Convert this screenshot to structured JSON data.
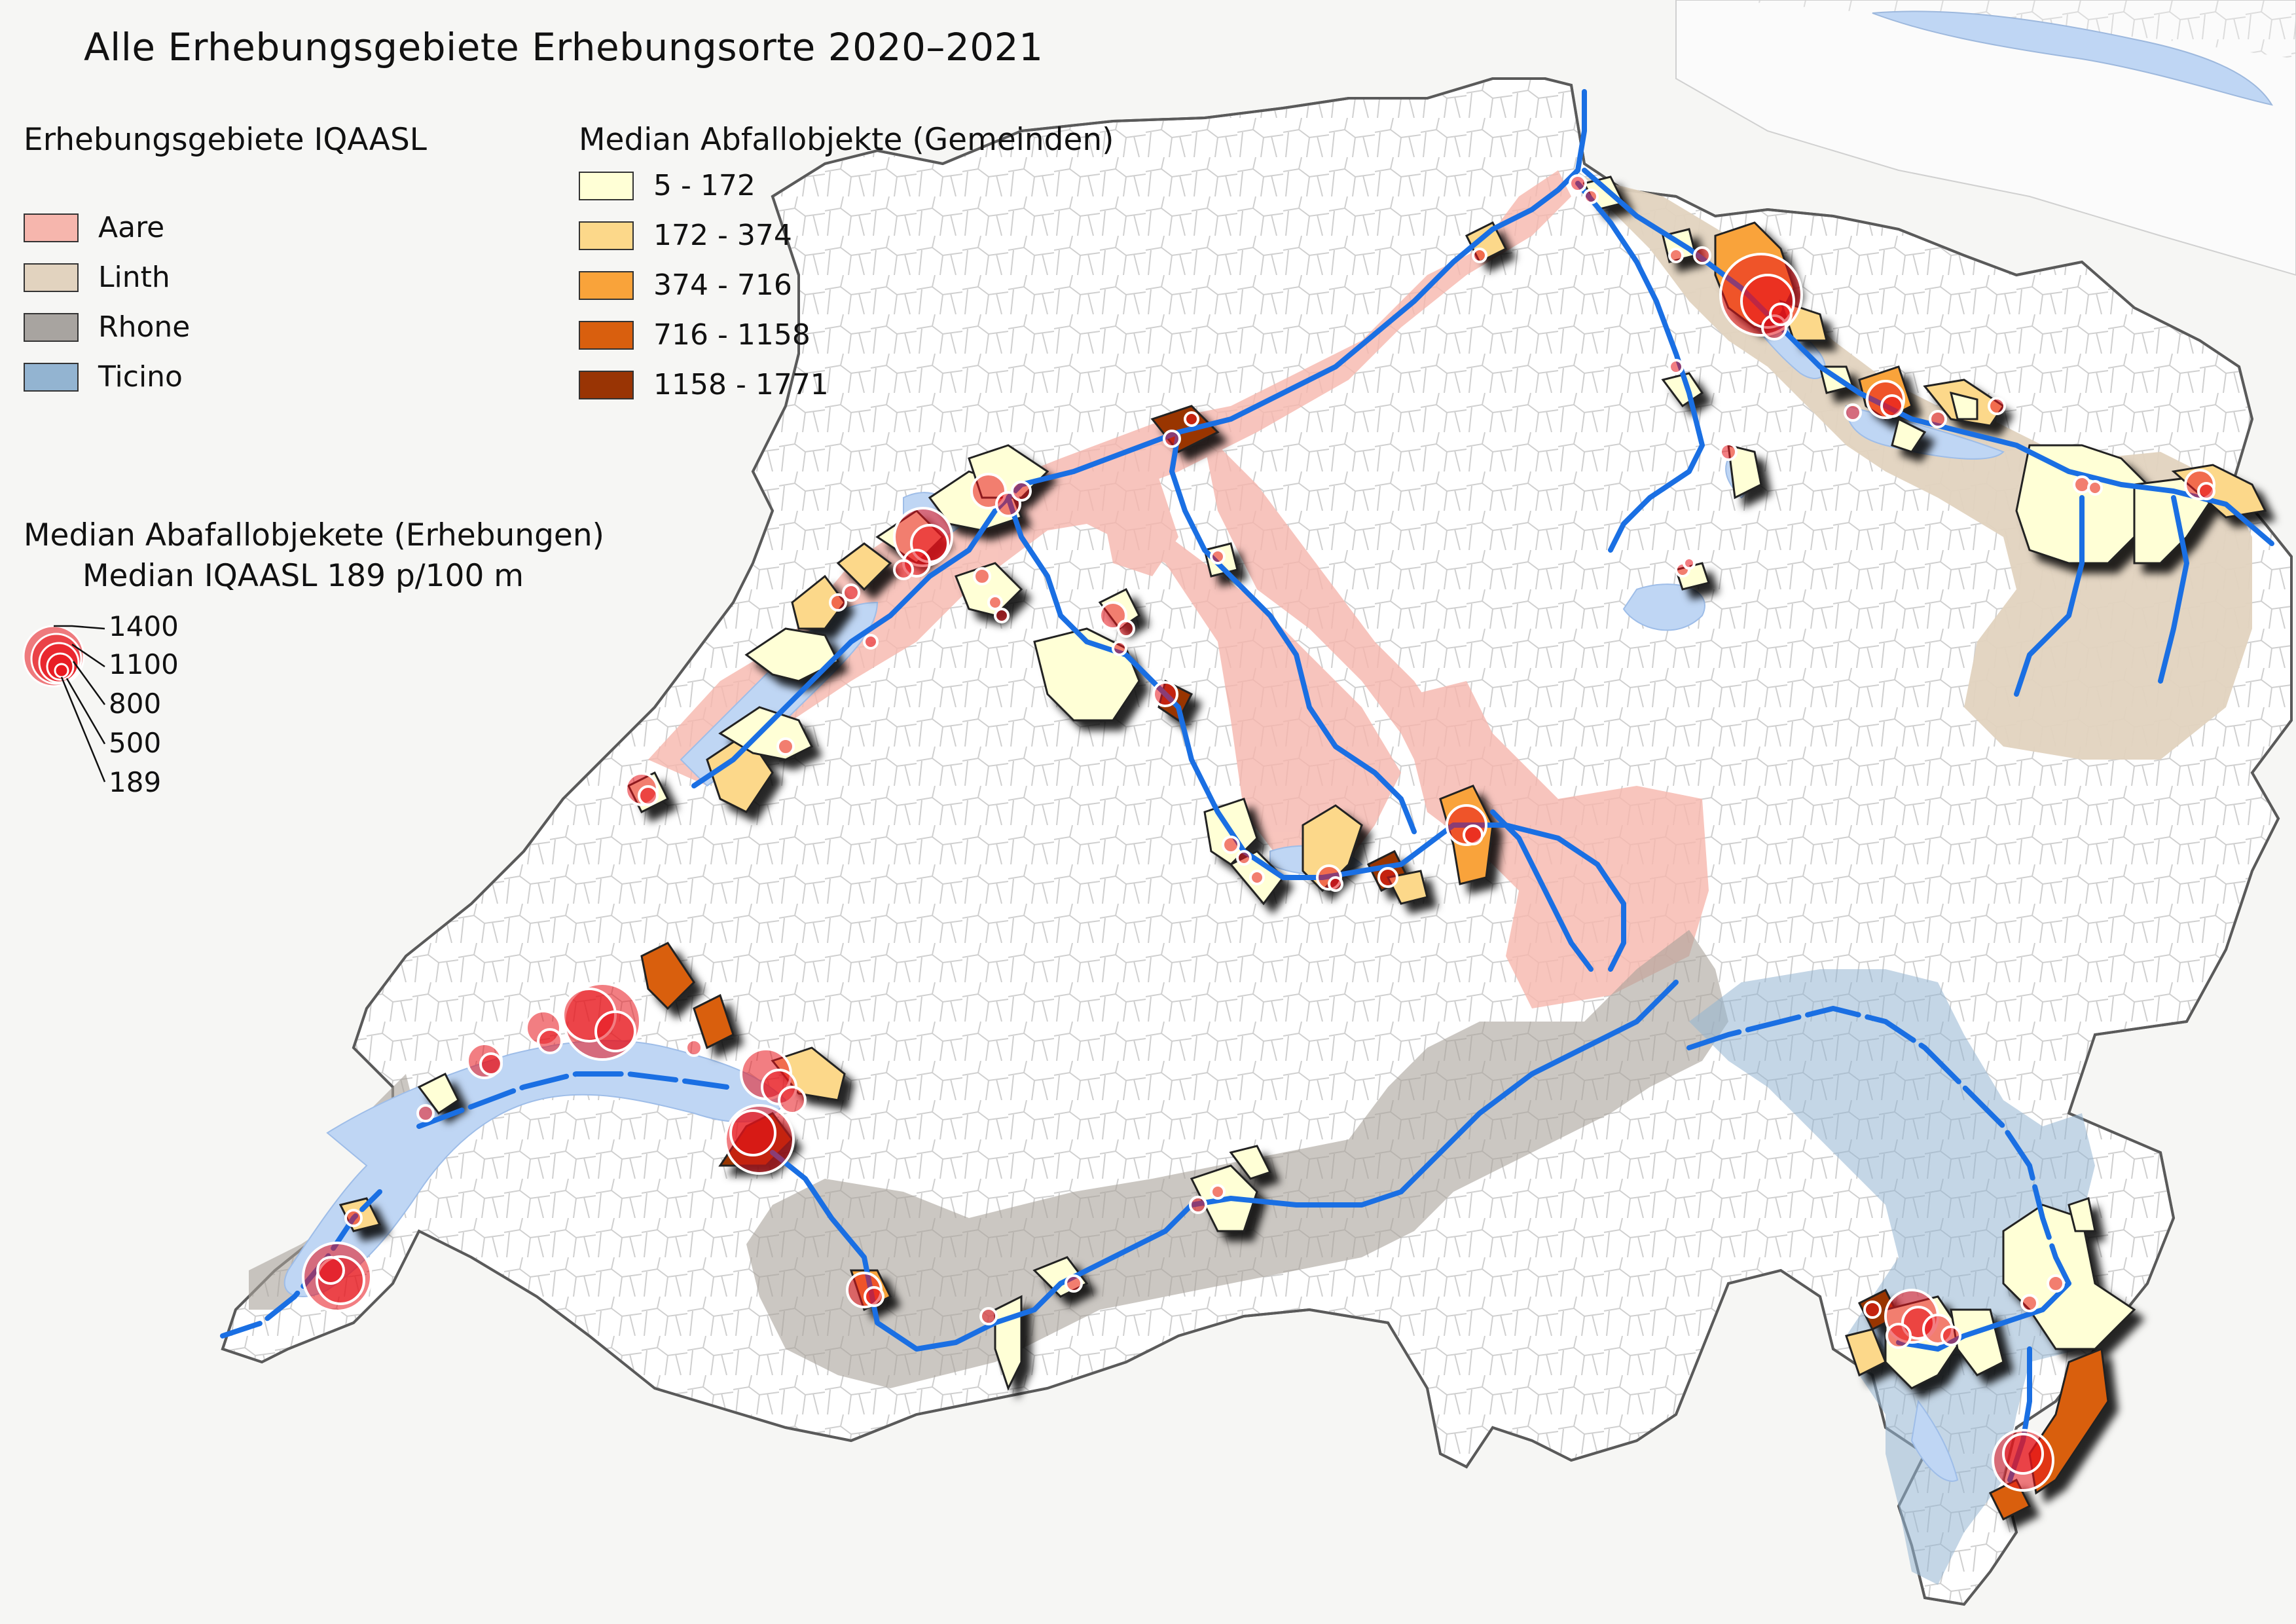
{
  "title": "Alle Erhebungsgebiete Erhebungsorte 2020–2021",
  "legend_regions": {
    "heading": "Erhebungsgebiete IQAASL",
    "items": [
      {
        "label": "Aare",
        "color": "#f6b6ad"
      },
      {
        "label": "Linth",
        "color": "#e2d3bf"
      },
      {
        "label": "Rhone",
        "color": "#a8a4a0"
      },
      {
        "label": "Ticino",
        "color": "#93b4d1"
      }
    ]
  },
  "legend_municipalities": {
    "heading": "Median Abfallobjekte (Gemeinden)",
    "items": [
      {
        "label": "5 - 172",
        "color": "#ffffd6"
      },
      {
        "label": "172 - 374",
        "color": "#fcd88a"
      },
      {
        "label": "374 - 716",
        "color": "#f9a33a"
      },
      {
        "label": "716 - 1158",
        "color": "#d95f0e"
      },
      {
        "label": "1158 - 1771",
        "color": "#993404"
      }
    ]
  },
  "legend_surveys": {
    "heading_line1": "Median Abafallobjekete (Erhebungen)",
    "heading_line2": "Median IQAASL 189 p/100 m",
    "sizes": [
      "1400",
      "1100",
      "800",
      "500",
      "189"
    ]
  },
  "colors": {
    "lake": "#bfd6f4",
    "river": "#1a6fe3",
    "survey_point": "#e8141c",
    "border": "#8a8a8a"
  }
}
